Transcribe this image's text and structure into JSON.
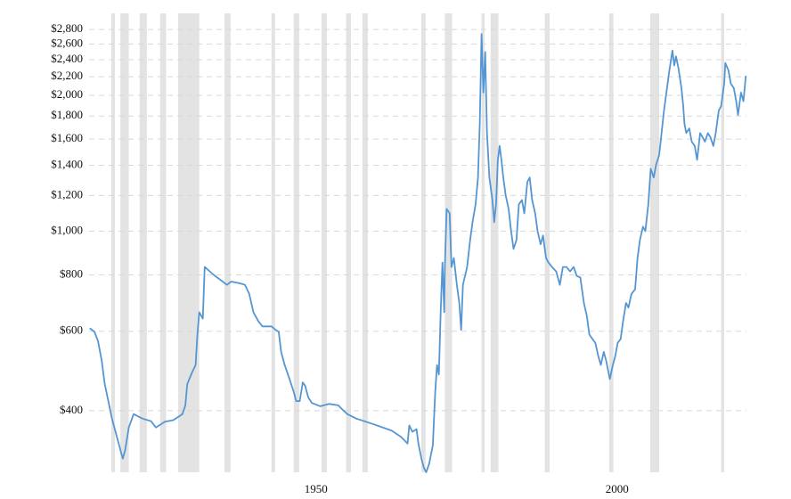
{
  "chart_data": {
    "type": "line",
    "log_scale": true,
    "grid": true,
    "band_color": "#e3e3e3",
    "recessions": [
      [
        1916.0,
        1916.6
      ],
      [
        1917.5,
        1918.9
      ],
      [
        1920.7,
        1921.9
      ],
      [
        1924.1,
        1925.1
      ],
      [
        1927.1,
        1930.6
      ],
      [
        1934.8,
        1935.8
      ],
      [
        1942.6,
        1943.2
      ],
      [
        1946.3,
        1947.2
      ],
      [
        1950.9,
        1951.8
      ],
      [
        1955.0,
        1955.8
      ],
      [
        1957.7,
        1958.6
      ],
      [
        1967.5,
        1968.2
      ],
      [
        1971.4,
        1972.6
      ],
      [
        1977.5,
        1978.0
      ],
      [
        1979.0,
        1980.3
      ],
      [
        1988.0,
        1988.8
      ],
      [
        1998.7,
        1999.4
      ],
      [
        2005.5,
        2007.0
      ],
      [
        2017.3,
        2017.8
      ]
    ],
    "xlim": [
      1912.3,
      2021.5
    ],
    "xticks": [
      1950,
      2000
    ],
    "ylim": [
      292,
      3040
    ],
    "yticks": [
      {
        "value": 400,
        "label": "$400"
      },
      {
        "value": 600,
        "label": "$600"
      },
      {
        "value": 800,
        "label": "$800"
      },
      {
        "value": 1000,
        "label": "$1,000"
      },
      {
        "value": 1200,
        "label": "$1,200"
      },
      {
        "value": 1400,
        "label": "$1,400"
      },
      {
        "value": 1600,
        "label": "$1,600"
      },
      {
        "value": 1800,
        "label": "$1,800"
      },
      {
        "value": 2000,
        "label": "$2,000"
      },
      {
        "value": 2200,
        "label": "$2,200"
      },
      {
        "value": 2400,
        "label": "$2,400"
      },
      {
        "value": 2600,
        "label": "$2,600"
      },
      {
        "value": 2800,
        "label": "$2,800"
      }
    ],
    "series": [
      {
        "color": "#5596d2",
        "x": [
          1912.4,
          1913.2,
          1913.8,
          1914.4,
          1914.9,
          1915.5,
          1916.1,
          1916.7,
          1917.3,
          1917.9,
          1918.3,
          1918.9,
          1919.7,
          1921.2,
          1922.6,
          1923.4,
          1924.9,
          1926.3,
          1927.8,
          1928.3,
          1928.6,
          1929.4,
          1930.0,
          1930.3,
          1930.6,
          1931.2,
          1931.5,
          1933.0,
          1934.5,
          1935.2,
          1935.9,
          1937.4,
          1938.2,
          1938.9,
          1939.6,
          1940.4,
          1941.1,
          1942.6,
          1943.3,
          1943.8,
          1944.2,
          1944.8,
          1945.6,
          1946.3,
          1946.7,
          1947.3,
          1947.8,
          1948.2,
          1948.7,
          1949.3,
          1950.7,
          1952.2,
          1953.7,
          1954.4,
          1955.2,
          1956.7,
          1959.6,
          1962.6,
          1964.1,
          1965.2,
          1965.5,
          1966.0,
          1966.7,
          1967.0,
          1967.5,
          1967.9,
          1968.3,
          1968.8,
          1969.4,
          1969.8,
          1970.1,
          1970.4,
          1970.7,
          1971.0,
          1971.3,
          1971.4,
          1971.7,
          1972.2,
          1972.5,
          1972.9,
          1973.4,
          1973.8,
          1974.1,
          1974.4,
          1975.1,
          1975.6,
          1976.0,
          1976.5,
          1976.9,
          1977.2,
          1977.5,
          1977.8,
          1978.1,
          1978.4,
          1978.8,
          1979.3,
          1979.6,
          1979.9,
          1980.2,
          1980.5,
          1980.8,
          1981.1,
          1981.5,
          1982.0,
          1982.4,
          1982.8,
          1983.3,
          1983.7,
          1984.2,
          1984.6,
          1985.1,
          1985.5,
          1985.9,
          1986.4,
          1986.8,
          1987.3,
          1987.7,
          1988.2,
          1988.6,
          1989.2,
          1989.9,
          1990.5,
          1991.0,
          1991.6,
          1992.2,
          1992.8,
          1993.3,
          1993.9,
          1994.5,
          1995.0,
          1995.4,
          1995.9,
          1996.4,
          1996.9,
          1997.3,
          1997.8,
          1998.2,
          1998.8,
          1999.3,
          1999.7,
          2000.1,
          2000.6,
          2001.0,
          2001.5,
          2001.9,
          2002.4,
          2003.0,
          2003.4,
          2003.8,
          2004.3,
          2004.7,
          2005.2,
          2005.6,
          2006.1,
          2006.5,
          2007.0,
          2007.4,
          2007.8,
          2008.3,
          2008.7,
          2009.2,
          2009.5,
          2009.8,
          2010.2,
          2010.7,
          2011.0,
          2011.2,
          2011.5,
          2012.0,
          2012.4,
          2012.9,
          2013.3,
          2013.8,
          2014.2,
          2014.6,
          2015.1,
          2015.5,
          2016.0,
          2016.4,
          2016.9,
          2017.3,
          2017.8,
          2018.0,
          2018.5,
          2018.9,
          2019.4,
          2019.8,
          2020.1,
          2020.6,
          2021.0,
          2021.4
        ],
        "values": [
          609,
          598,
          570,
          516,
          458,
          420,
          384,
          359,
          335,
          313,
          327,
          367,
          393,
          384,
          379,
          367,
          378,
          381,
          393,
          411,
          458,
          486,
          505,
          590,
          661,
          640,
          833,
          800,
          773,
          760,
          773,
          766,
          760,
          726,
          661,
          632,
          615,
          615,
          604,
          598,
          540,
          505,
          470,
          440,
          420,
          420,
          462,
          454,
          428,
          416,
          409,
          414,
          411,
          402,
          393,
          384,
          373,
          361,
          350,
          338,
          371,
          359,
          364,
          338,
          313,
          299,
          292,
          305,
          335,
          440,
          505,
          481,
          661,
          852,
          661,
          833,
          1120,
          1095,
          833,
          872,
          760,
          693,
          604,
          760,
          833,
          956,
          1047,
          1147,
          1315,
          1730,
          2735,
          2030,
          2495,
          1650,
          1315,
          1172,
          1047,
          1147,
          1440,
          1545,
          1440,
          1315,
          1200,
          1120,
          1000,
          913,
          956,
          1147,
          1172,
          1095,
          1285,
          1315,
          1172,
          1095,
          1000,
          935,
          978,
          872,
          852,
          833,
          814,
          760,
          833,
          833,
          814,
          833,
          796,
          789,
          693,
          647,
          590,
          577,
          565,
          528,
          505,
          540,
          516,
          470,
          505,
          528,
          565,
          577,
          632,
          693,
          677,
          726,
          743,
          872,
          956,
          1023,
          1000,
          1147,
          1375,
          1315,
          1405,
          1475,
          1650,
          1850,
          2075,
          2275,
          2515,
          2330,
          2440,
          2300,
          2075,
          1895,
          1730,
          1650,
          1690,
          1580,
          1545,
          1440,
          1650,
          1615,
          1580,
          1650,
          1615,
          1545,
          1650,
          1850,
          1895,
          2125,
          2360,
          2275,
          2125,
          2075,
          1940,
          1810,
          2030,
          1940,
          2210
        ]
      }
    ]
  }
}
